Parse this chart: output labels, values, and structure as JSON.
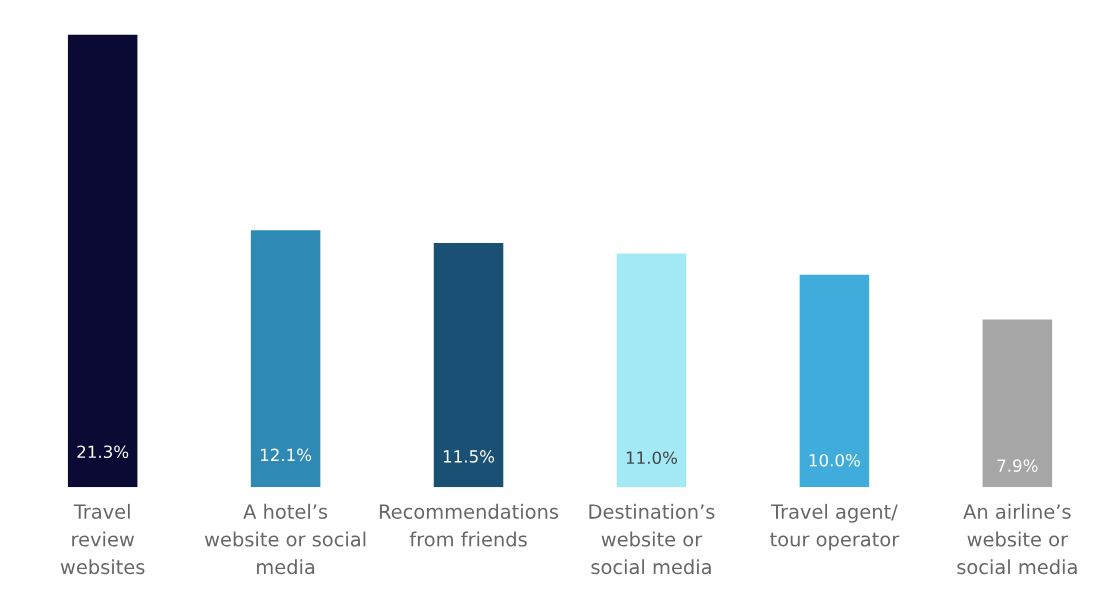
{
  "chart_data": {
    "type": "bar",
    "categories": [
      "Travel\nreview\nwebsites",
      "A hotel’s\nwebsite or social\nmedia",
      "Recommendations\nfrom friends",
      "Destination’s\nwebsite or\nsocial media",
      "Travel agent/\ntour operator",
      "An airline’s\nwebsite or\nsocial media"
    ],
    "values": [
      21.3,
      12.1,
      11.5,
      11.0,
      10.0,
      7.9
    ],
    "colors": [
      "#0b0a35",
      "#2e8ab4",
      "#1a5073",
      "#a3eaf6",
      "#40acdc",
      "#a6a6a6"
    ],
    "value_labels": [
      "21.3%",
      "12.1%",
      "11.5%",
      "11.0%",
      "10.0%",
      "7.9%"
    ],
    "grid": false,
    "legend": false
  }
}
